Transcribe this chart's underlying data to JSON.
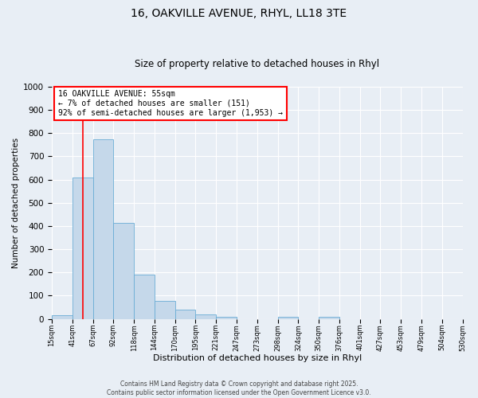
{
  "title": "16, OAKVILLE AVENUE, RHYL, LL18 3TE",
  "subtitle": "Size of property relative to detached houses in Rhyl",
  "xlabel": "Distribution of detached houses by size in Rhyl",
  "ylabel": "Number of detached properties",
  "bin_labels": [
    "15sqm",
    "41sqm",
    "67sqm",
    "92sqm",
    "118sqm",
    "144sqm",
    "170sqm",
    "195sqm",
    "221sqm",
    "247sqm",
    "273sqm",
    "298sqm",
    "324sqm",
    "350sqm",
    "376sqm",
    "401sqm",
    "427sqm",
    "453sqm",
    "479sqm",
    "504sqm",
    "530sqm"
  ],
  "bar_values": [
    15,
    608,
    775,
    413,
    192,
    78,
    40,
    18,
    10,
    0,
    0,
    10,
    0,
    10,
    0,
    0,
    0,
    0,
    0,
    0
  ],
  "bar_color": "#c5d8ea",
  "bar_edge_color": "#6aadd5",
  "ylim": [
    0,
    1000
  ],
  "yticks": [
    0,
    100,
    200,
    300,
    400,
    500,
    600,
    700,
    800,
    900,
    1000
  ],
  "vline_color": "red",
  "vline_position": 1.5,
  "annotation_title": "16 OAKVILLE AVENUE: 55sqm",
  "annotation_line1": "← 7% of detached houses are smaller (151)",
  "annotation_line2": "92% of semi-detached houses are larger (1,953) →",
  "annotation_box_color": "white",
  "annotation_box_edge": "red",
  "footer1": "Contains HM Land Registry data © Crown copyright and database right 2025.",
  "footer2": "Contains public sector information licensed under the Open Government Licence v3.0.",
  "background_color": "#e8eef5",
  "plot_bg_color": "#e8eef5"
}
